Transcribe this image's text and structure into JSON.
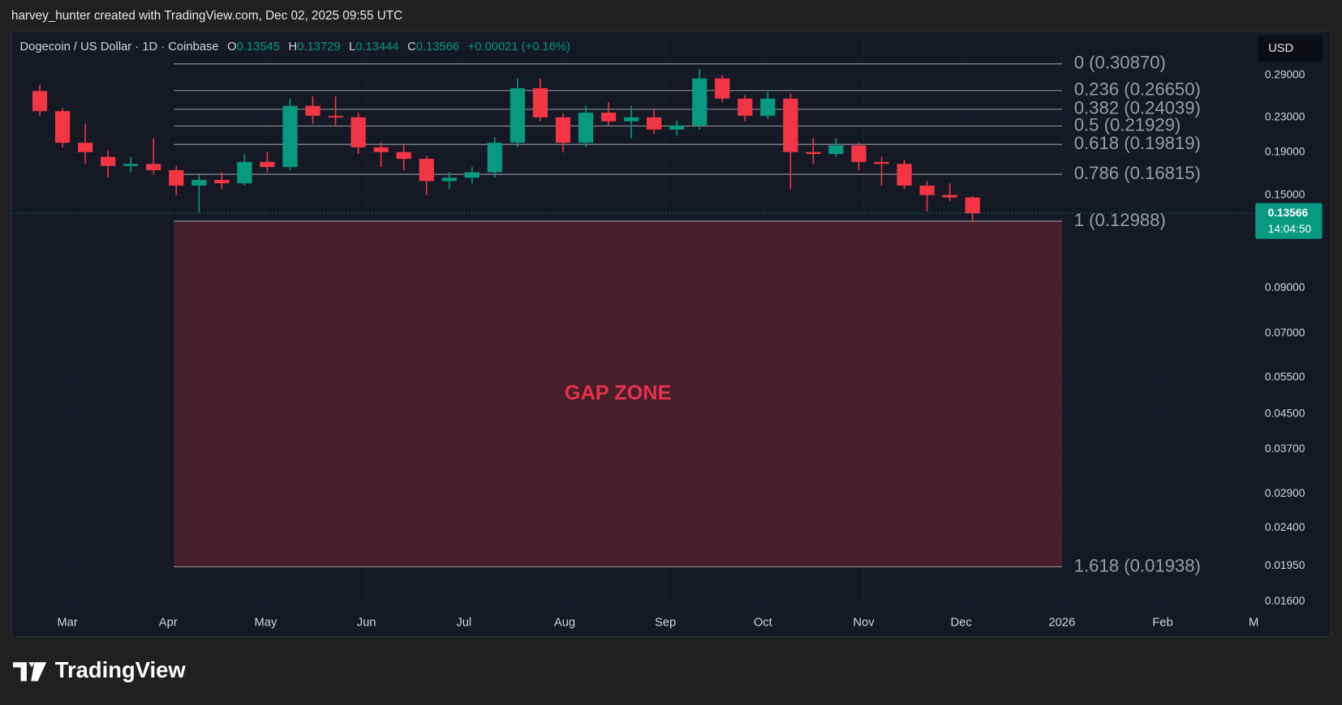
{
  "header": {
    "attribution": "harvey_hunter created with TradingView.com, Dec 02, 2025 09:55 UTC"
  },
  "chart_data": {
    "type": "candlestick",
    "symbol": "Dogecoin / US Dollar · 1D · Coinbase",
    "ohlc_legend": [
      {
        "key": "O",
        "value": 0.13545
      },
      {
        "key": "H",
        "value": 0.13729
      },
      {
        "key": "L",
        "value": 0.13444
      },
      {
        "key": "C",
        "value": 0.13566
      }
    ],
    "change": "+0.00021 (+0.16%)",
    "currency": "USD",
    "last_price": 0.13566,
    "countdown": "14:04:50",
    "x": [
      "2025-02-17",
      "2025-02-24",
      "2025-03-03",
      "2025-03-10",
      "2025-03-17",
      "2025-03-24",
      "2025-03-31",
      "2025-04-07",
      "2025-04-14",
      "2025-04-21",
      "2025-04-28",
      "2025-05-05",
      "2025-05-12",
      "2025-05-19",
      "2025-05-26",
      "2025-06-02",
      "2025-06-09",
      "2025-06-16",
      "2025-06-23",
      "2025-06-30",
      "2025-07-07",
      "2025-07-14",
      "2025-07-21",
      "2025-07-28",
      "2025-08-04",
      "2025-08-11",
      "2025-08-18",
      "2025-08-25",
      "2025-09-01",
      "2025-09-08",
      "2025-09-15",
      "2025-09-22",
      "2025-09-29",
      "2025-10-06",
      "2025-10-13",
      "2025-10-20",
      "2025-10-27",
      "2025-11-03",
      "2025-11-10",
      "2025-11-17",
      "2025-11-24",
      "2025-12-01"
    ],
    "open": [
      0.266,
      0.238,
      0.2,
      0.185,
      0.176,
      0.178,
      0.172,
      0.158,
      0.163,
      0.16,
      0.18,
      0.175,
      0.245,
      0.232,
      0.23,
      0.195,
      0.19,
      0.183,
      0.162,
      0.165,
      0.17,
      0.2,
      0.27,
      0.23,
      0.2,
      0.236,
      0.225,
      0.23,
      0.215,
      0.22,
      0.285,
      0.255,
      0.232,
      0.255,
      0.19,
      0.188,
      0.197,
      0.18,
      0.178,
      0.158,
      0.15,
      0.148
    ],
    "high": [
      0.275,
      0.242,
      0.222,
      0.192,
      0.185,
      0.205,
      0.176,
      0.168,
      0.17,
      0.188,
      0.19,
      0.255,
      0.258,
      0.258,
      0.236,
      0.2,
      0.198,
      0.186,
      0.17,
      0.175,
      0.206,
      0.285,
      0.285,
      0.235,
      0.245,
      0.25,
      0.245,
      0.24,
      0.226,
      0.3,
      0.29,
      0.26,
      0.265,
      0.262,
      0.205,
      0.205,
      0.2,
      0.185,
      0.182,
      0.162,
      0.16,
      0.149
    ],
    "low": [
      0.232,
      0.195,
      0.178,
      0.165,
      0.17,
      0.168,
      0.15,
      0.136,
      0.155,
      0.158,
      0.17,
      0.172,
      0.222,
      0.22,
      0.188,
      0.175,
      0.172,
      0.15,
      0.155,
      0.16,
      0.165,
      0.195,
      0.225,
      0.19,
      0.195,
      0.22,
      0.205,
      0.21,
      0.208,
      0.215,
      0.25,
      0.225,
      0.228,
      0.155,
      0.178,
      0.185,
      0.172,
      0.158,
      0.155,
      0.137,
      0.145,
      0.129
    ],
    "close": [
      0.238,
      0.2,
      0.19,
      0.176,
      0.178,
      0.172,
      0.158,
      0.163,
      0.16,
      0.18,
      0.175,
      0.245,
      0.232,
      0.23,
      0.195,
      0.19,
      0.183,
      0.162,
      0.165,
      0.17,
      0.2,
      0.27,
      0.23,
      0.2,
      0.236,
      0.225,
      0.23,
      0.215,
      0.22,
      0.285,
      0.255,
      0.232,
      0.255,
      0.19,
      0.188,
      0.197,
      0.18,
      0.178,
      0.158,
      0.15,
      0.148,
      0.13566
    ],
    "colors": {
      "up": "#089981",
      "down": "#f23645"
    },
    "log_scale": true,
    "grid": true,
    "xlim": [
      "2025-02-12",
      "2026-03-01"
    ],
    "xticks": [
      {
        "value": "2025-03-01",
        "label": "Mar"
      },
      {
        "value": "2025-04-01",
        "label": "Apr"
      },
      {
        "value": "2025-05-01",
        "label": "May"
      },
      {
        "value": "2025-06-01",
        "label": "Jun"
      },
      {
        "value": "2025-07-01",
        "label": "Jul"
      },
      {
        "value": "2025-08-01",
        "label": "Aug"
      },
      {
        "value": "2025-09-01",
        "label": "Sep"
      },
      {
        "value": "2025-10-01",
        "label": "Oct"
      },
      {
        "value": "2025-11-01",
        "label": "Nov"
      },
      {
        "value": "2025-12-01",
        "label": "Dec"
      },
      {
        "value": "2026-01-01",
        "label": "2026"
      },
      {
        "value": "2026-02-01",
        "label": "Feb"
      },
      {
        "value": "2026-03-01",
        "label": "M"
      }
    ],
    "ylim": [
      0.0152,
      0.3635
    ],
    "yticks": [
      {
        "value": 0.29,
        "label": "0.29000"
      },
      {
        "value": 0.23,
        "label": "0.23000"
      },
      {
        "value": 0.19,
        "label": "0.19000"
      },
      {
        "value": 0.15,
        "label": "0.15000"
      },
      {
        "value": 0.09,
        "label": "0.09000"
      },
      {
        "value": 0.07,
        "label": "0.07000"
      },
      {
        "value": 0.055,
        "label": "0.05500"
      },
      {
        "value": 0.045,
        "label": "0.04500"
      },
      {
        "value": 0.037,
        "label": "0.03700"
      },
      {
        "value": 0.029,
        "label": "0.02900"
      },
      {
        "value": 0.024,
        "label": "0.02400"
      },
      {
        "value": 0.0195,
        "label": "0.01950"
      },
      {
        "value": 0.016,
        "label": "0.01600"
      }
    ],
    "fib_levels": [
      {
        "value": 0.3087,
        "label": "0 (0.30870)"
      },
      {
        "value": 0.2665,
        "label": "0.236 (0.26650)"
      },
      {
        "value": 0.24039,
        "label": "0.382 (0.24039)"
      },
      {
        "value": 0.21929,
        "label": "0.5 (0.21929)"
      },
      {
        "value": 0.19819,
        "label": "0.618 (0.19819)"
      },
      {
        "value": 0.16815,
        "label": "0.786 (0.16815)"
      },
      {
        "value": 0.12988,
        "label": "1 (0.12988)"
      },
      {
        "value": 0.01938,
        "label": "1.618 (0.01938)"
      }
    ],
    "zone_label": "GAP ZONE"
  },
  "logo": "TradingView"
}
